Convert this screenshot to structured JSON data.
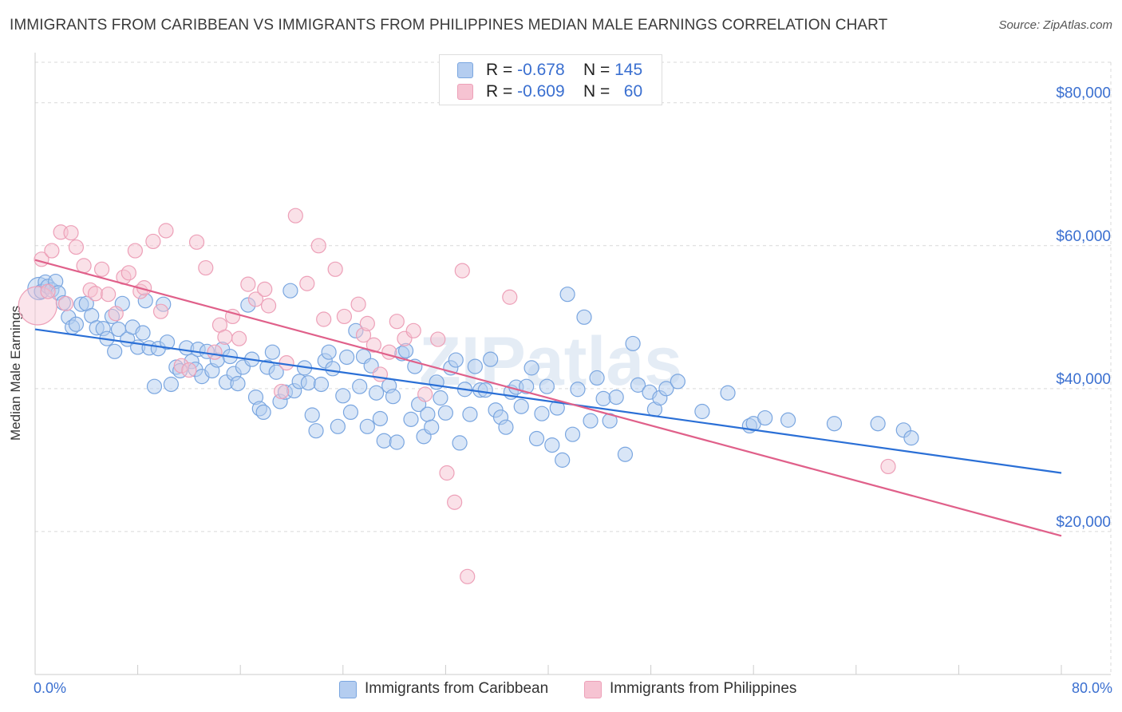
{
  "chart_data": {
    "type": "scatter",
    "title": "IMMIGRANTS FROM CARIBBEAN VS IMMIGRANTS FROM PHILIPPINES MEDIAN MALE EARNINGS CORRELATION CHART",
    "source": "Source: ZipAtlas.com",
    "watermark": "ZIPatlas",
    "xlabel": "",
    "ylabel": "Median Male Earnings",
    "xlim": [
      0,
      80
    ],
    "ylim": [
      0,
      86000
    ],
    "x_tick_labels": {
      "left": "0.0%",
      "right": "80.0%"
    },
    "y_ticks": [
      {
        "value": 20000,
        "label": "$20,000"
      },
      {
        "value": 40000,
        "label": "$40,000"
      },
      {
        "value": 60000,
        "label": "$60,000"
      },
      {
        "value": 80000,
        "label": "$80,000"
      }
    ],
    "grid": true,
    "legend": {
      "position": "top-center",
      "rows": [
        {
          "r_label": "R =",
          "r_value": "-0.678",
          "n_label": "N =",
          "n_value": "145"
        },
        {
          "r_label": "R =",
          "r_value": "-0.609",
          "n_label": "N =",
          "n_value": "60"
        }
      ]
    },
    "series": [
      {
        "name": "Immigrants from Caribbean",
        "color": "#7aa6e0",
        "fill": "#b4cdf0",
        "line_color": "#2a6fd6",
        "trend": {
          "x": [
            0,
            80
          ],
          "y": [
            48300,
            28200
          ]
        },
        "points": [
          [
            0.3,
            54000
          ],
          [
            0.5,
            53600
          ],
          [
            0.8,
            54900
          ],
          [
            1.0,
            54300
          ],
          [
            1.3,
            53800
          ],
          [
            1.6,
            55000
          ],
          [
            1.8,
            53400
          ],
          [
            2.2,
            52000
          ],
          [
            2.6,
            50000
          ],
          [
            2.9,
            48600
          ],
          [
            3.2,
            49000
          ],
          [
            3.6,
            51800
          ],
          [
            4.0,
            51900
          ],
          [
            4.4,
            50200
          ],
          [
            4.8,
            48500
          ],
          [
            5.3,
            48400
          ],
          [
            5.6,
            47000
          ],
          [
            6.0,
            50100
          ],
          [
            6.2,
            45200
          ],
          [
            6.5,
            48300
          ],
          [
            6.8,
            51900
          ],
          [
            7.2,
            46900
          ],
          [
            7.6,
            48600
          ],
          [
            8.0,
            45800
          ],
          [
            8.4,
            47800
          ],
          [
            8.6,
            52300
          ],
          [
            8.9,
            45700
          ],
          [
            9.3,
            40300
          ],
          [
            9.6,
            45600
          ],
          [
            10.0,
            51800
          ],
          [
            10.3,
            46500
          ],
          [
            10.6,
            40600
          ],
          [
            11.0,
            43000
          ],
          [
            11.3,
            42500
          ],
          [
            11.8,
            45700
          ],
          [
            12.2,
            43800
          ],
          [
            12.5,
            42700
          ],
          [
            12.7,
            45500
          ],
          [
            13.0,
            41700
          ],
          [
            13.4,
            45200
          ],
          [
            13.8,
            42500
          ],
          [
            14.2,
            44000
          ],
          [
            14.6,
            45500
          ],
          [
            14.9,
            40900
          ],
          [
            15.2,
            44500
          ],
          [
            15.5,
            42100
          ],
          [
            15.8,
            40700
          ],
          [
            16.2,
            43000
          ],
          [
            16.6,
            51700
          ],
          [
            16.9,
            44100
          ],
          [
            17.2,
            38800
          ],
          [
            17.5,
            37200
          ],
          [
            17.8,
            36700
          ],
          [
            18.1,
            43000
          ],
          [
            18.5,
            45100
          ],
          [
            18.8,
            42300
          ],
          [
            19.1,
            38200
          ],
          [
            19.5,
            39500
          ],
          [
            19.9,
            53700
          ],
          [
            20.2,
            39700
          ],
          [
            20.6,
            41000
          ],
          [
            21.0,
            42900
          ],
          [
            21.3,
            40800
          ],
          [
            21.6,
            36300
          ],
          [
            21.9,
            34100
          ],
          [
            22.3,
            40600
          ],
          [
            22.6,
            43900
          ],
          [
            22.9,
            45100
          ],
          [
            23.2,
            42800
          ],
          [
            23.6,
            34700
          ],
          [
            24.0,
            39000
          ],
          [
            24.3,
            44400
          ],
          [
            24.6,
            36700
          ],
          [
            25.0,
            48100
          ],
          [
            25.3,
            40300
          ],
          [
            25.6,
            44500
          ],
          [
            25.9,
            34700
          ],
          [
            26.2,
            43200
          ],
          [
            26.6,
            39400
          ],
          [
            26.9,
            35800
          ],
          [
            27.2,
            32700
          ],
          [
            27.6,
            40400
          ],
          [
            27.9,
            38900
          ],
          [
            28.2,
            32500
          ],
          [
            28.6,
            44900
          ],
          [
            28.9,
            45300
          ],
          [
            29.3,
            35700
          ],
          [
            29.6,
            43100
          ],
          [
            29.9,
            37800
          ],
          [
            30.3,
            33300
          ],
          [
            30.6,
            36400
          ],
          [
            30.9,
            34600
          ],
          [
            31.3,
            40900
          ],
          [
            31.6,
            38700
          ],
          [
            32.0,
            36600
          ],
          [
            32.4,
            42900
          ],
          [
            32.8,
            44000
          ],
          [
            33.1,
            32400
          ],
          [
            33.5,
            39900
          ],
          [
            33.9,
            36400
          ],
          [
            34.3,
            43100
          ],
          [
            34.7,
            39800
          ],
          [
            35.1,
            39800
          ],
          [
            35.5,
            44100
          ],
          [
            35.9,
            37000
          ],
          [
            36.3,
            36000
          ],
          [
            36.7,
            34600
          ],
          [
            37.1,
            39500
          ],
          [
            37.5,
            40200
          ],
          [
            37.9,
            37500
          ],
          [
            38.3,
            40300
          ],
          [
            38.7,
            42900
          ],
          [
            39.1,
            33000
          ],
          [
            39.5,
            36500
          ],
          [
            39.9,
            40300
          ],
          [
            40.3,
            32100
          ],
          [
            40.7,
            37300
          ],
          [
            41.1,
            30000
          ],
          [
            41.5,
            53200
          ],
          [
            41.9,
            33600
          ],
          [
            42.3,
            39900
          ],
          [
            42.8,
            50000
          ],
          [
            43.3,
            35500
          ],
          [
            43.8,
            41500
          ],
          [
            44.3,
            38600
          ],
          [
            44.8,
            35500
          ],
          [
            45.3,
            38800
          ],
          [
            46.0,
            30800
          ],
          [
            46.6,
            46300
          ],
          [
            47.0,
            40500
          ],
          [
            47.9,
            39500
          ],
          [
            48.3,
            37100
          ],
          [
            48.7,
            38700
          ],
          [
            49.2,
            40000
          ],
          [
            50.1,
            41000
          ],
          [
            52.0,
            36800
          ],
          [
            54.0,
            39400
          ],
          [
            55.7,
            34800
          ],
          [
            56.0,
            35100
          ],
          [
            56.9,
            35900
          ],
          [
            58.7,
            35600
          ],
          [
            62.3,
            35100
          ],
          [
            65.7,
            35100
          ],
          [
            67.7,
            34200
          ],
          [
            68.3,
            33100
          ]
        ]
      },
      {
        "name": "Immigrants from Philippines",
        "color": "#eda0b8",
        "fill": "#f6c3d2",
        "line_color": "#e0608a",
        "trend": {
          "x": [
            0,
            80
          ],
          "y": [
            58000,
            19400
          ]
        },
        "points": [
          [
            0.2,
            51600
          ],
          [
            0.5,
            58100
          ],
          [
            1.0,
            53600
          ],
          [
            1.3,
            59300
          ],
          [
            2.0,
            61900
          ],
          [
            2.4,
            51900
          ],
          [
            2.8,
            61800
          ],
          [
            3.2,
            59800
          ],
          [
            3.8,
            57200
          ],
          [
            4.3,
            53800
          ],
          [
            4.7,
            53300
          ],
          [
            5.2,
            56700
          ],
          [
            5.7,
            53200
          ],
          [
            6.3,
            50500
          ],
          [
            6.9,
            55600
          ],
          [
            7.3,
            56200
          ],
          [
            7.8,
            59300
          ],
          [
            8.2,
            53600
          ],
          [
            8.5,
            54100
          ],
          [
            9.2,
            60600
          ],
          [
            9.8,
            50800
          ],
          [
            10.2,
            62100
          ],
          [
            11.4,
            43200
          ],
          [
            12.0,
            42600
          ],
          [
            12.6,
            60500
          ],
          [
            13.3,
            56900
          ],
          [
            14.0,
            45100
          ],
          [
            14.4,
            48900
          ],
          [
            14.8,
            47200
          ],
          [
            15.4,
            50100
          ],
          [
            15.9,
            47000
          ],
          [
            16.6,
            54600
          ],
          [
            17.2,
            52500
          ],
          [
            17.9,
            53900
          ],
          [
            18.2,
            51600
          ],
          [
            19.2,
            39600
          ],
          [
            19.6,
            43600
          ],
          [
            20.3,
            64200
          ],
          [
            21.2,
            54700
          ],
          [
            22.1,
            60000
          ],
          [
            22.5,
            49700
          ],
          [
            23.4,
            56700
          ],
          [
            24.1,
            50100
          ],
          [
            25.2,
            51800
          ],
          [
            25.6,
            47500
          ],
          [
            25.9,
            49100
          ],
          [
            26.4,
            46100
          ],
          [
            26.9,
            42000
          ],
          [
            27.6,
            45100
          ],
          [
            28.2,
            49400
          ],
          [
            28.8,
            47000
          ],
          [
            29.5,
            48100
          ],
          [
            30.4,
            39200
          ],
          [
            31.4,
            46900
          ],
          [
            32.1,
            28200
          ],
          [
            32.7,
            24100
          ],
          [
            33.3,
            56500
          ],
          [
            33.7,
            13700
          ],
          [
            37.0,
            52800
          ],
          [
            66.5,
            29100
          ]
        ]
      }
    ]
  }
}
